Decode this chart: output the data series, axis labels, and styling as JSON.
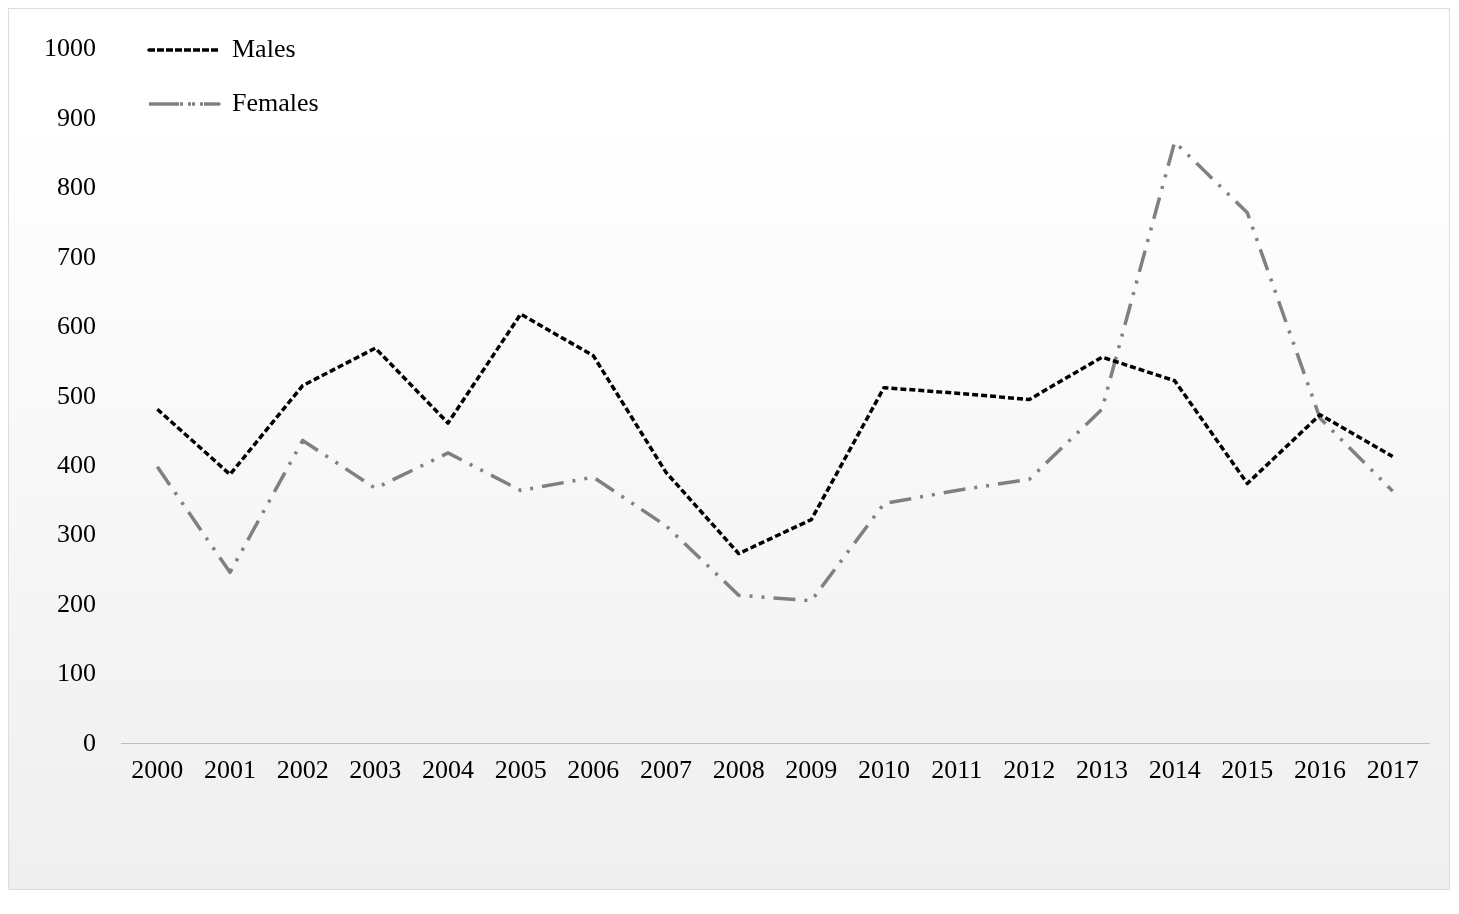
{
  "chart_data": {
    "type": "line",
    "categories": [
      "2000",
      "2001",
      "2002",
      "2003",
      "2004",
      "2005",
      "2006",
      "2007",
      "2008",
      "2009",
      "2010",
      "2011",
      "2012",
      "2013",
      "2014",
      "2015",
      "2016",
      "2017"
    ],
    "series": [
      {
        "name": "Males",
        "color": "#000000",
        "line_style": "dotted",
        "values": [
          482,
          388,
          516,
          570,
          462,
          619,
          559,
          391,
          274,
          323,
          513,
          505,
          496,
          557,
          523,
          375,
          474,
          414
        ]
      },
      {
        "name": "Females",
        "color": "#808080",
        "line_style": "dashed",
        "values": [
          399,
          247,
          437,
          368,
          419,
          365,
          384,
          314,
          214,
          206,
          346,
          365,
          381,
          482,
          867,
          765,
          469,
          364
        ]
      }
    ],
    "ylim": [
      0,
      1000
    ],
    "yticks": [
      0,
      100,
      200,
      300,
      400,
      500,
      600,
      700,
      800,
      900,
      1000
    ],
    "grid": false,
    "legend": "top left",
    "marker": "none"
  }
}
